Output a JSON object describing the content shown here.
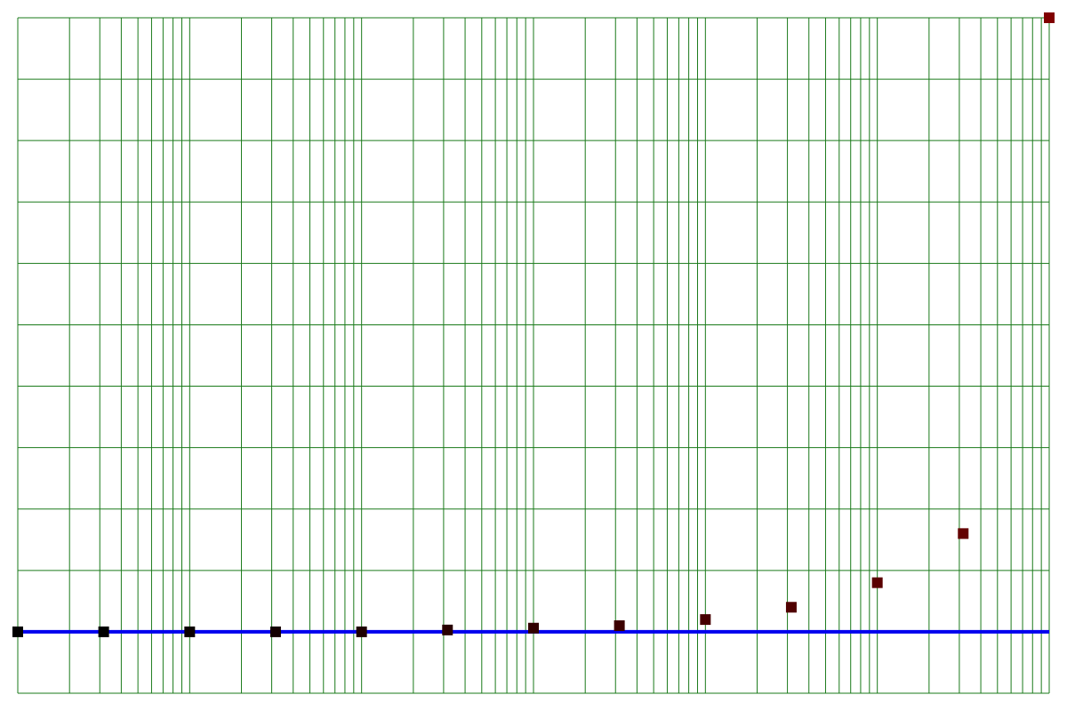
{
  "chart_data": {
    "type": "scatter",
    "x_scale": "log",
    "xlim": [
      1,
      1000000
    ],
    "ylim": [
      -1,
      10
    ],
    "grid": true,
    "title": "",
    "xlabel": "",
    "ylabel": "",
    "baseline": {
      "y": 0,
      "color": "#0000ee"
    },
    "series": [
      {
        "marker": "square",
        "x": [
          1,
          3.16,
          10,
          31.6,
          100,
          316,
          1000,
          3160,
          10000,
          31600,
          100000,
          316000,
          1000000
        ],
        "y": [
          0,
          0,
          0,
          0,
          0,
          0.03,
          0.06,
          0.1,
          0.2,
          0.4,
          0.8,
          1.6,
          10
        ],
        "colors": [
          "#000000",
          "#000000",
          "#0a0000",
          "#140000",
          "#1e0000",
          "#280000",
          "#320000",
          "#3c0000",
          "#460000",
          "#500000",
          "#5a0000",
          "#640000",
          "#800000"
        ]
      }
    ]
  },
  "colors": {
    "grid": "#1a7a1a",
    "baseline": "#0000ee",
    "background": "#ffffff"
  }
}
